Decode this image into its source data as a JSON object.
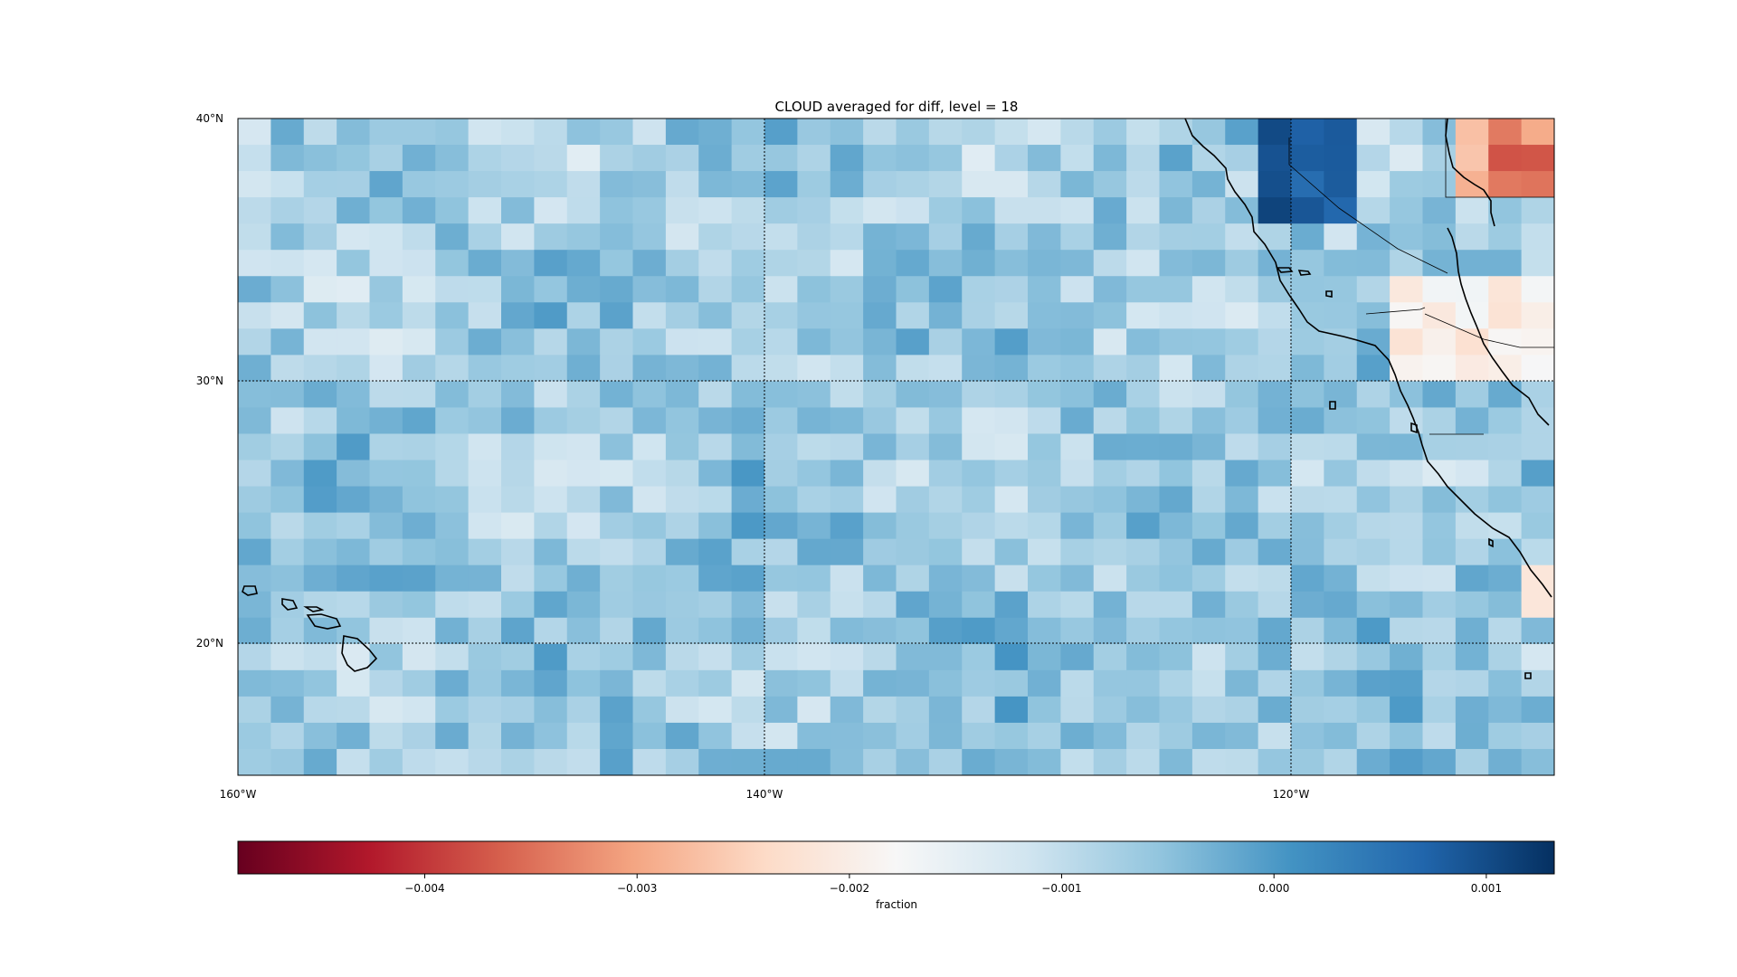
{
  "title": "CLOUD averaged for diff, level = 18",
  "map": {
    "extent": {
      "lon_min": -160,
      "lon_max": -110,
      "lat_min": 15,
      "lat_max": 40
    },
    "grid_lines": {
      "lons": [
        -140,
        -120
      ],
      "lats": [
        20,
        30
      ]
    },
    "lon_ticks": [
      {
        "value": -160,
        "label": "160°W"
      },
      {
        "value": -140,
        "label": "140°W"
      },
      {
        "value": -120,
        "label": "120°W"
      }
    ],
    "lat_ticks": [
      {
        "value": 40,
        "label": "40°N"
      },
      {
        "value": 30,
        "label": "30°N"
      },
      {
        "value": 20,
        "label": "20°N"
      }
    ],
    "cells": {
      "cols": 40,
      "rows": 25,
      "cell_deg_lon": 1.25,
      "cell_deg_lat": 1.0
    }
  },
  "colorbar": {
    "colormap": "RdBu",
    "vmin": -0.00488,
    "vmax": 0.00132,
    "ticks": [
      {
        "value": -0.004,
        "label": "−0.004"
      },
      {
        "value": -0.003,
        "label": "−0.003"
      },
      {
        "value": -0.002,
        "label": "−0.002"
      },
      {
        "value": -0.001,
        "label": "−0.001"
      },
      {
        "value": 0.0,
        "label": "0.000"
      },
      {
        "value": 0.001,
        "label": "0.001"
      }
    ],
    "label": "fraction"
  }
}
